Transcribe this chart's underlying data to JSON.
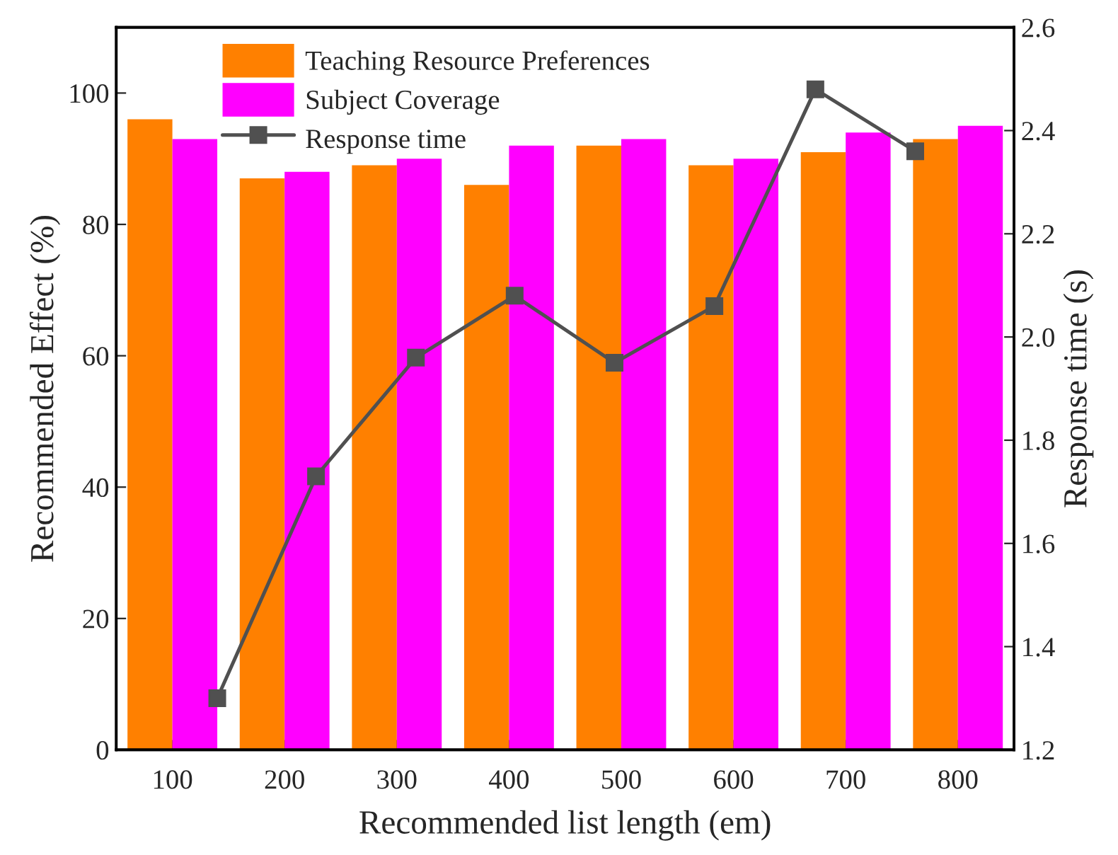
{
  "chart_data": {
    "type": "bar",
    "xlabel": "Recommended list length (em)",
    "ylabel": "Recommended Effect (%)",
    "y2label": "Response time (s)",
    "x": [
      100,
      200,
      300,
      400,
      500,
      600,
      700,
      800
    ],
    "xlim": [
      50,
      850
    ],
    "xticks": [
      100,
      200,
      300,
      400,
      500,
      600,
      700,
      800
    ],
    "ylim": [
      0,
      110
    ],
    "yticks": [
      0,
      20,
      40,
      60,
      80,
      100
    ],
    "y2lim": [
      1.2,
      2.6
    ],
    "y2ticks": [
      {
        "value": 1.2,
        "label": "1.2"
      },
      {
        "value": 1.4,
        "label": "1.4"
      },
      {
        "value": 1.6,
        "label": "1.6"
      },
      {
        "value": 1.8,
        "label": "1.8"
      },
      {
        "value": 2.0,
        "label": "2.0"
      },
      {
        "value": 2.2,
        "label": "2.2"
      },
      {
        "value": 2.4,
        "label": "2.4"
      },
      {
        "value": 2.6,
        "label": "2.6"
      }
    ],
    "series": [
      {
        "name": "Teaching Resource Preferences",
        "color": "#ff8000",
        "values": [
          96,
          87,
          89,
          86,
          92,
          89,
          91,
          93
        ]
      },
      {
        "name": "Subject Coverage",
        "color": "#ff00ff",
        "values": [
          93,
          88,
          90,
          92,
          93,
          90,
          94,
          95
        ]
      },
      {
        "name": "Response time",
        "type": "line",
        "axis": "y2",
        "color": "#505050",
        "marker": "square",
        "x": [
          140,
          228,
          317,
          405,
          494,
          583,
          673,
          762
        ],
        "values": [
          1.3,
          1.73,
          1.96,
          2.08,
          1.95,
          2.06,
          2.48,
          2.36
        ]
      }
    ],
    "legend": "top left",
    "grid": false
  }
}
